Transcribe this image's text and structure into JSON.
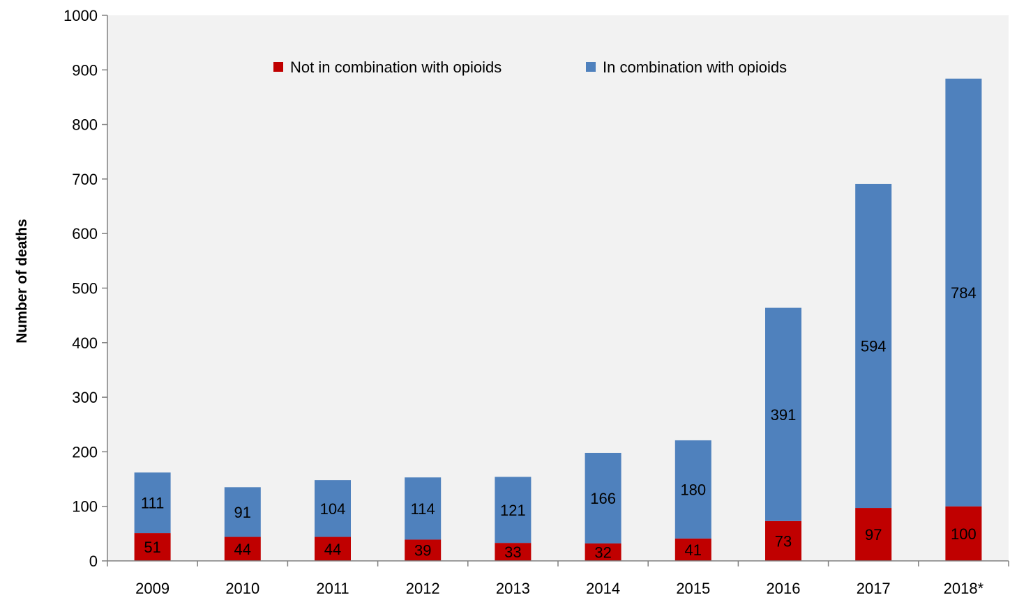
{
  "chart_data": {
    "type": "bar",
    "stacked": true,
    "title": "",
    "xlabel": "",
    "ylabel": "Number of deaths",
    "ylim": [
      0,
      1000
    ],
    "yticks": [
      0,
      100,
      200,
      300,
      400,
      500,
      600,
      700,
      800,
      900,
      1000
    ],
    "yticklabels": [
      "0",
      "100",
      "200",
      "300",
      "400",
      "500",
      "600",
      "700",
      "800",
      "900",
      "1000"
    ],
    "categories": [
      "2009",
      "2010",
      "2011",
      "2012",
      "2013",
      "2014",
      "2015",
      "2016",
      "2017",
      "2018*"
    ],
    "series": [
      {
        "name": "Not in combination with opioids",
        "color": "#c00000",
        "values": [
          51,
          44,
          44,
          39,
          33,
          32,
          41,
          73,
          97,
          100
        ],
        "labels": [
          "51",
          "44",
          "44",
          "39",
          "33",
          "32",
          "41",
          "73",
          "97",
          "100"
        ]
      },
      {
        "name": "In combination with opioids",
        "color": "#4f81bd",
        "values": [
          111,
          91,
          104,
          114,
          121,
          166,
          180,
          391,
          594,
          784
        ],
        "labels": [
          "111",
          "91",
          "104",
          "114",
          "121",
          "166",
          "180",
          "391",
          "594",
          "784"
        ]
      }
    ],
    "legend_position": "top-center",
    "grid": false,
    "plot_background": "#f2f2f2"
  }
}
